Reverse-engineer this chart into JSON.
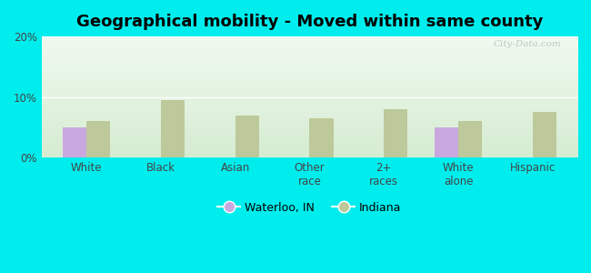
{
  "title": "Geographical mobility - Moved within same county",
  "categories": [
    "White",
    "Black",
    "Asian",
    "Other\nrace",
    "2+\nraces",
    "White\nalone",
    "Hispanic"
  ],
  "waterloo_values": [
    5.0,
    0,
    0,
    0,
    0,
    5.0,
    0
  ],
  "indiana_values": [
    6.0,
    9.5,
    7.0,
    6.5,
    8.0,
    6.0,
    7.5
  ],
  "waterloo_color": "#c9a8e0",
  "indiana_color": "#bdc99a",
  "ylim": [
    0,
    20
  ],
  "yticks": [
    0,
    10,
    20
  ],
  "ytick_labels": [
    "0%",
    "10%",
    "20%"
  ],
  "background_color": "#00eded",
  "plot_bg_top": "#d6ecd2",
  "plot_bg_bottom": "#f0faf0",
  "legend_waterloo": "Waterloo, IN",
  "legend_indiana": "Indiana",
  "bar_width": 0.32,
  "title_fontsize": 13,
  "tick_fontsize": 8.5,
  "legend_fontsize": 9,
  "watermark": "City-Data.com"
}
